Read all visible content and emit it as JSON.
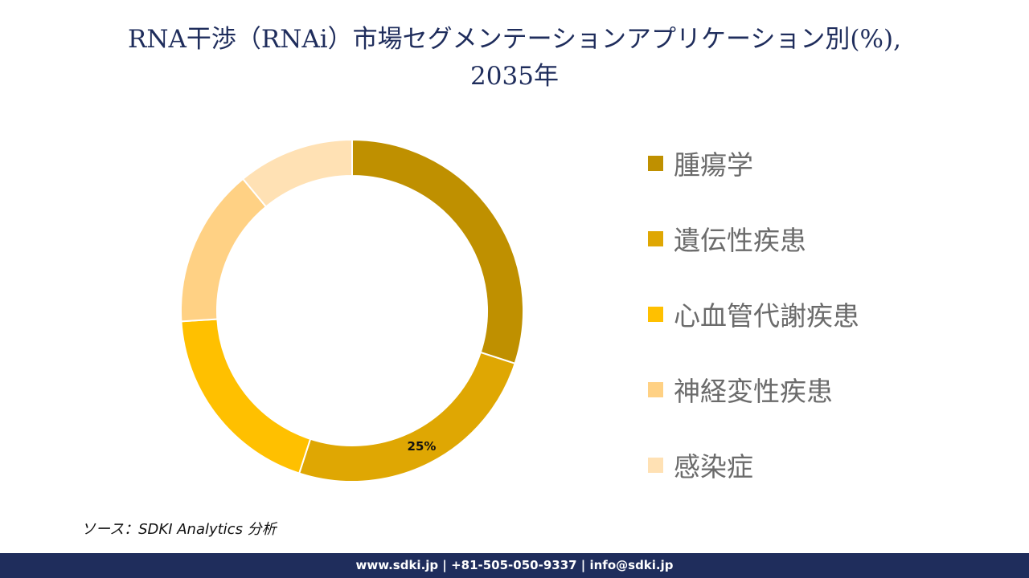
{
  "title_lines": [
    "RNA干渉（RNAi）市場セグメンテーションアプリケーション別(%),",
    "2035年"
  ],
  "chart_data": {
    "type": "pie",
    "variant": "donut",
    "categories": [
      "腫瘍学",
      "遺伝性疾患",
      "心血管代謝疾患",
      "神経変性疾患",
      "感染症"
    ],
    "values": [
      30,
      25,
      19,
      15,
      11
    ],
    "colors": [
      "#bf9000",
      "#dfa703",
      "#ffc000",
      "#ffd184",
      "#ffe1b4"
    ],
    "data_labels": [
      "",
      "25%",
      "",
      "",
      ""
    ],
    "legend_position": "right"
  },
  "source": "ソース：SDKI Analytics 分析",
  "footer": "www.sdki.jp | +81-505-050-9337 | info@sdki.jp"
}
